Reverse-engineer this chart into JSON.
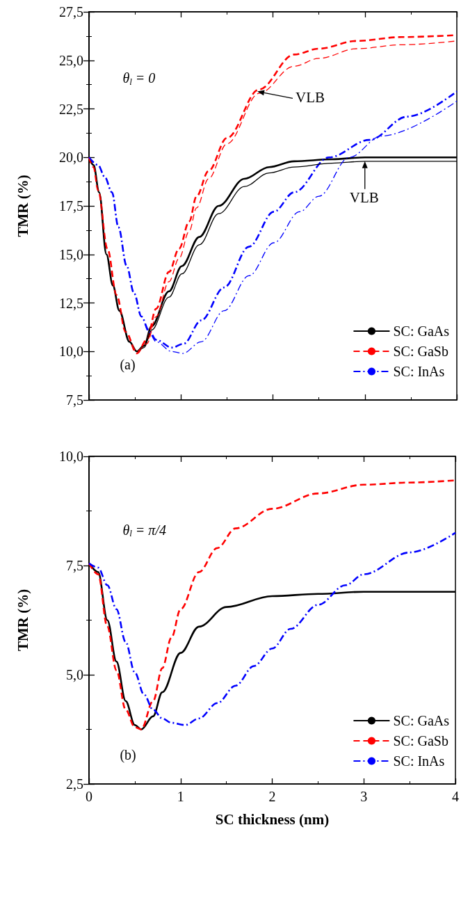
{
  "chart_data": [
    {
      "type": "line",
      "ylabel": "TMR (%)",
      "xlim": [
        0,
        4
      ],
      "xticks": [
        0,
        1,
        2,
        3,
        4
      ],
      "ylim": [
        7.5,
        27.5
      ],
      "yticks": [
        {
          "value": 7.5,
          "label": "7,5"
        },
        {
          "value": 10,
          "label": "10,0"
        },
        {
          "value": 12.5,
          "label": "12,5"
        },
        {
          "value": 15,
          "label": "15,0"
        },
        {
          "value": 17.5,
          "label": "17,5"
        },
        {
          "value": 20,
          "label": "20,0"
        },
        {
          "value": 22.5,
          "label": "22,5"
        },
        {
          "value": 25,
          "label": "25,0"
        },
        {
          "value": 27.5,
          "label": "27,5"
        }
      ],
      "tick_labels": "y",
      "grid": false,
      "legend": "bottom right",
      "marker": "none",
      "annotations": [
        "θ$_{l}$ = 0",
        "(a)",
        {
          "text": "VLB",
          "x": 1.83,
          "y": 23.4
        },
        {
          "text": "VLB",
          "x": 3.0,
          "y": 19.8
        }
      ],
      "series": [
        {
          "name": "SC: GaAs",
          "color": "#000000",
          "line_style": "solid",
          "x": [
            0,
            0.05,
            0.11,
            0.19,
            0.26,
            0.33,
            0.44,
            0.52,
            0.6,
            0.68,
            0.87,
            1.01,
            1.2,
            1.41,
            1.69,
            1.96,
            2.23,
            2.64,
            3.0,
            3.5,
            4
          ],
          "values": [
            20,
            19.6,
            18.2,
            15.0,
            13.4,
            12.1,
            10.5,
            10.0,
            10.3,
            11.3,
            13.1,
            14.4,
            15.9,
            17.5,
            18.9,
            19.5,
            19.8,
            19.9,
            20.0,
            20.0,
            20.0
          ]
        },
        {
          "name": "SC: GaSb",
          "color": "#ff0000",
          "line_style": "dashed",
          "x": [
            0,
            0.05,
            0.1,
            0.2,
            0.3,
            0.4,
            0.52,
            0.63,
            0.73,
            0.87,
            0.98,
            1.09,
            1.17,
            1.3,
            1.5,
            1.85,
            2.23,
            2.5,
            2.91,
            3.4,
            4
          ],
          "values": [
            20,
            19.5,
            18.3,
            15.3,
            12.9,
            11.0,
            9.9,
            10.6,
            12.2,
            14.1,
            15.3,
            16.7,
            18.0,
            19.3,
            21.0,
            23.5,
            25.3,
            25.6,
            26.0,
            26.2,
            26.3
          ]
        },
        {
          "name": "SC: InAs",
          "color": "#0000ff",
          "line_style": "dashdot",
          "x": [
            0,
            0.1,
            0.17,
            0.25,
            0.32,
            0.41,
            0.49,
            0.57,
            0.65,
            0.73,
            0.9,
            1.03,
            1.22,
            1.47,
            1.74,
            2.01,
            2.23,
            2.61,
            3.05,
            3.46,
            4
          ],
          "values": [
            20,
            19.6,
            19.0,
            18.2,
            16.4,
            14.4,
            13.0,
            11.8,
            11.1,
            10.6,
            10.2,
            10.4,
            11.6,
            13.3,
            15.4,
            17.2,
            18.2,
            20.0,
            20.9,
            22.1,
            23.4
          ]
        },
        {
          "color": "#000000",
          "line_style": "solid",
          "x": [
            0,
            0.05,
            0.11,
            0.19,
            0.26,
            0.33,
            0.44,
            0.52,
            0.6,
            0.68,
            0.87,
            1.01,
            1.2,
            1.41,
            1.69,
            1.96,
            2.23,
            2.64,
            3.0,
            3.5,
            4
          ],
          "values": [
            20,
            19.6,
            18.2,
            15.0,
            13.4,
            12.1,
            10.5,
            10.0,
            10.2,
            11.1,
            12.8,
            14.0,
            15.5,
            17.1,
            18.5,
            19.2,
            19.5,
            19.7,
            19.8,
            19.8,
            19.8
          ]
        },
        {
          "color": "#ff0000",
          "line_style": "dashed",
          "x": [
            0,
            0.05,
            0.1,
            0.2,
            0.3,
            0.4,
            0.52,
            0.63,
            0.73,
            0.87,
            0.98,
            1.09,
            1.17,
            1.3,
            1.5,
            1.85,
            2.23,
            2.5,
            2.91,
            3.4,
            4
          ],
          "values": [
            20,
            19.5,
            18.3,
            15.3,
            12.9,
            11.0,
            10.0,
            10.4,
            11.8,
            13.6,
            14.8,
            16.2,
            17.4,
            18.9,
            20.7,
            23.3,
            24.7,
            25.1,
            25.6,
            25.8,
            26.0
          ]
        },
        {
          "color": "#0000ff",
          "line_style": "dashdot",
          "x": [
            0,
            0.1,
            0.17,
            0.25,
            0.32,
            0.41,
            0.49,
            0.57,
            0.65,
            0.73,
            0.9,
            1.02,
            1.22,
            1.47,
            1.74,
            2.01,
            2.29,
            2.5,
            2.83,
            3.18,
            4
          ],
          "values": [
            20,
            19.6,
            19.0,
            18.2,
            16.4,
            14.4,
            13.0,
            11.8,
            11.0,
            10.5,
            10.0,
            9.9,
            10.5,
            12.1,
            13.9,
            15.6,
            17.2,
            18.0,
            20.0,
            21.1,
            22.9
          ]
        }
      ]
    },
    {
      "type": "line",
      "xlabel": "SC thickness (nm)",
      "ylabel": "TMR (%)",
      "xlim": [
        0,
        4
      ],
      "xticks": [
        0,
        1,
        2,
        3,
        4
      ],
      "ylim": [
        2.5,
        10
      ],
      "yticks": [
        {
          "value": 2.5,
          "label": "2,5"
        },
        {
          "value": 5,
          "label": "5,0"
        },
        {
          "value": 7.5,
          "label": "7,5"
        },
        {
          "value": 10,
          "label": "10,0"
        }
      ],
      "grid": false,
      "legend": "bottom right",
      "marker": "none",
      "annotations": [
        "θ$_{l}$ = π/4",
        "(b)"
      ],
      "series": [
        {
          "name": "SC: GaAs",
          "color": "#000000",
          "line_style": "solid",
          "x": [
            0,
            0.1,
            0.2,
            0.3,
            0.4,
            0.5,
            0.57,
            0.7,
            0.8,
            1.0,
            1.2,
            1.5,
            2.0,
            2.5,
            3.0,
            3.5,
            4
          ],
          "values": [
            7.55,
            7.35,
            6.25,
            5.3,
            4.4,
            3.85,
            3.75,
            4.05,
            4.6,
            5.5,
            6.1,
            6.55,
            6.8,
            6.85,
            6.9,
            6.9,
            6.9
          ]
        },
        {
          "name": "SC: GaSb",
          "color": "#ff0000",
          "line_style": "dashed",
          "x": [
            0,
            0.1,
            0.2,
            0.3,
            0.4,
            0.5,
            0.57,
            0.7,
            0.8,
            0.9,
            1.0,
            1.2,
            1.4,
            1.6,
            2.0,
            2.5,
            3.0,
            3.5,
            4
          ],
          "values": [
            7.55,
            7.3,
            6.1,
            5.1,
            4.2,
            3.8,
            3.75,
            4.4,
            5.15,
            5.85,
            6.5,
            7.35,
            7.9,
            8.35,
            8.8,
            9.15,
            9.35,
            9.4,
            9.45
          ]
        },
        {
          "name": "SC: InAs",
          "color": "#0000ff",
          "line_style": "dashdot",
          "x": [
            0,
            0.1,
            0.2,
            0.3,
            0.4,
            0.5,
            0.6,
            0.7,
            0.8,
            0.9,
            1.05,
            1.2,
            1.4,
            1.6,
            1.8,
            2.0,
            2.2,
            2.5,
            2.8,
            3.0,
            3.5,
            4
          ],
          "values": [
            7.55,
            7.45,
            7.05,
            6.5,
            5.75,
            5.05,
            4.55,
            4.2,
            4.0,
            3.9,
            3.85,
            4.0,
            4.35,
            4.75,
            5.2,
            5.6,
            6.05,
            6.6,
            7.05,
            7.3,
            7.8,
            8.25
          ]
        }
      ]
    }
  ]
}
